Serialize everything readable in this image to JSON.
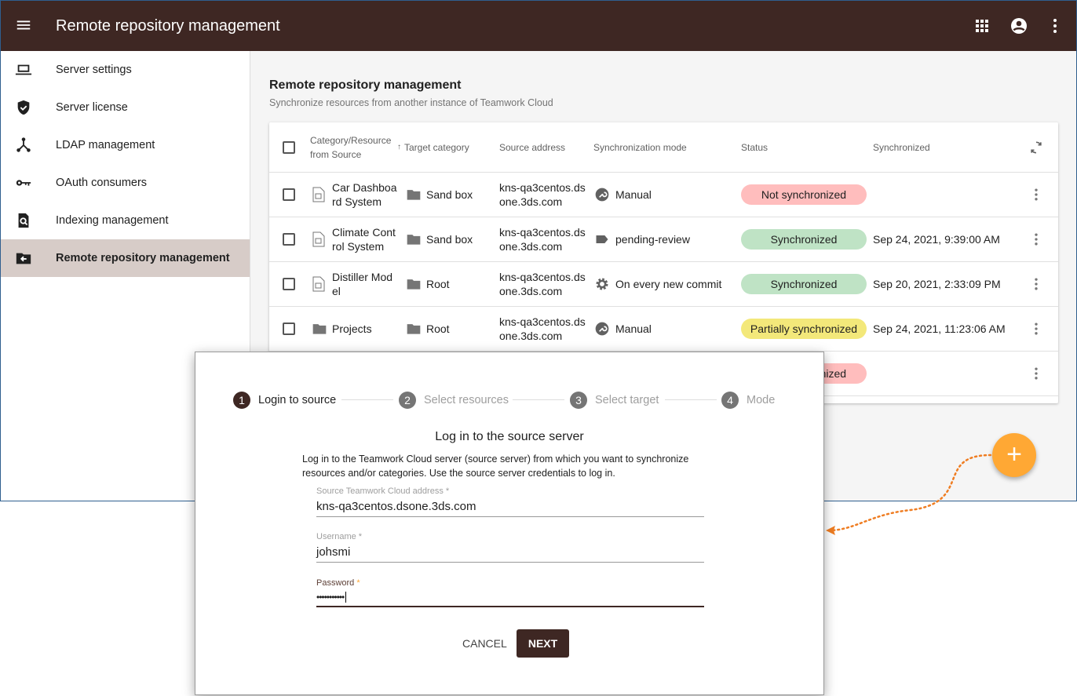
{
  "header": {
    "title": "Remote repository management"
  },
  "sidebar": {
    "items": [
      {
        "label": "Server settings",
        "icon": "laptop-icon"
      },
      {
        "label": "Server license",
        "icon": "shield-check-icon"
      },
      {
        "label": "LDAP management",
        "icon": "hierarchy-icon"
      },
      {
        "label": "OAuth consumers",
        "icon": "key-icon"
      },
      {
        "label": "Indexing management",
        "icon": "file-search-icon"
      },
      {
        "label": "Remote repository management",
        "icon": "folder-import-icon",
        "selected": true
      }
    ]
  },
  "main": {
    "title": "Remote repository management",
    "subtitle": "Synchronize resources from another instance of Teamwork Cloud"
  },
  "table": {
    "columns": [
      "Category/Resource from Source",
      "Target category",
      "Source address",
      "Synchronization mode",
      "Status",
      "Synchronized"
    ],
    "rows": [
      {
        "resource": "Car Dashboa rd System",
        "type": "resource",
        "target": "Sand box",
        "source": "kns-qa3centos.ds one.3ds.com",
        "mode": "Manual",
        "mode_icon": "wrench-icon",
        "status": "Not synchronized",
        "synced": ""
      },
      {
        "resource": "Climate Cont rol System",
        "type": "resource",
        "target": "Sand box",
        "source": "kns-qa3centos.ds one.3ds.com",
        "mode": "pending-review",
        "mode_icon": "tag-icon",
        "status": "Synchronized",
        "synced": "Sep 24, 2021, 9:39:00 AM"
      },
      {
        "resource": "Distiller Mod el",
        "type": "resource",
        "target": "Root",
        "source": "kns-qa3centos.ds one.3ds.com",
        "mode": "On every new commit",
        "mode_icon": "gear-icon",
        "status": "Synchronized",
        "synced": "Sep 20, 2021, 2:33:09 PM"
      },
      {
        "resource": "Projects",
        "type": "folder",
        "target": "Root",
        "source": "kns-qa3centos.ds one.3ds.com",
        "mode": "Manual",
        "mode_icon": "wrench-icon",
        "status": "Partially synchronized",
        "synced": "Sep 24, 2021, 11:23:06 AM"
      },
      {
        "resource": "",
        "type": "",
        "target": "",
        "source": "",
        "mode": "",
        "status": "Not synchronized",
        "synced": ""
      }
    ]
  },
  "colors": {
    "primary": "#3e2723",
    "accent": "#ffa834",
    "not_synced": "#ffbdbd",
    "synced": "#bfe3c5",
    "partial": "#f3e87a"
  },
  "dialog": {
    "steps": [
      "Login to source",
      "Select resources",
      "Select target",
      "Mode"
    ],
    "active_step": 1,
    "title": "Log in to the source server",
    "description": "Log in to the Teamwork Cloud server (source server) from which you want to synchronize resources and/or categories. Use the source server credentials to log in.",
    "fields": [
      {
        "label": "Source Teamwork Cloud address *",
        "value": "kns-qa3centos.dsone.3ds.com"
      },
      {
        "label": "Username *",
        "value": "johsmi"
      },
      {
        "label": "Password",
        "required": "*",
        "value": "•••••••••••"
      }
    ],
    "cancel": "CANCEL",
    "next": "NEXT"
  }
}
